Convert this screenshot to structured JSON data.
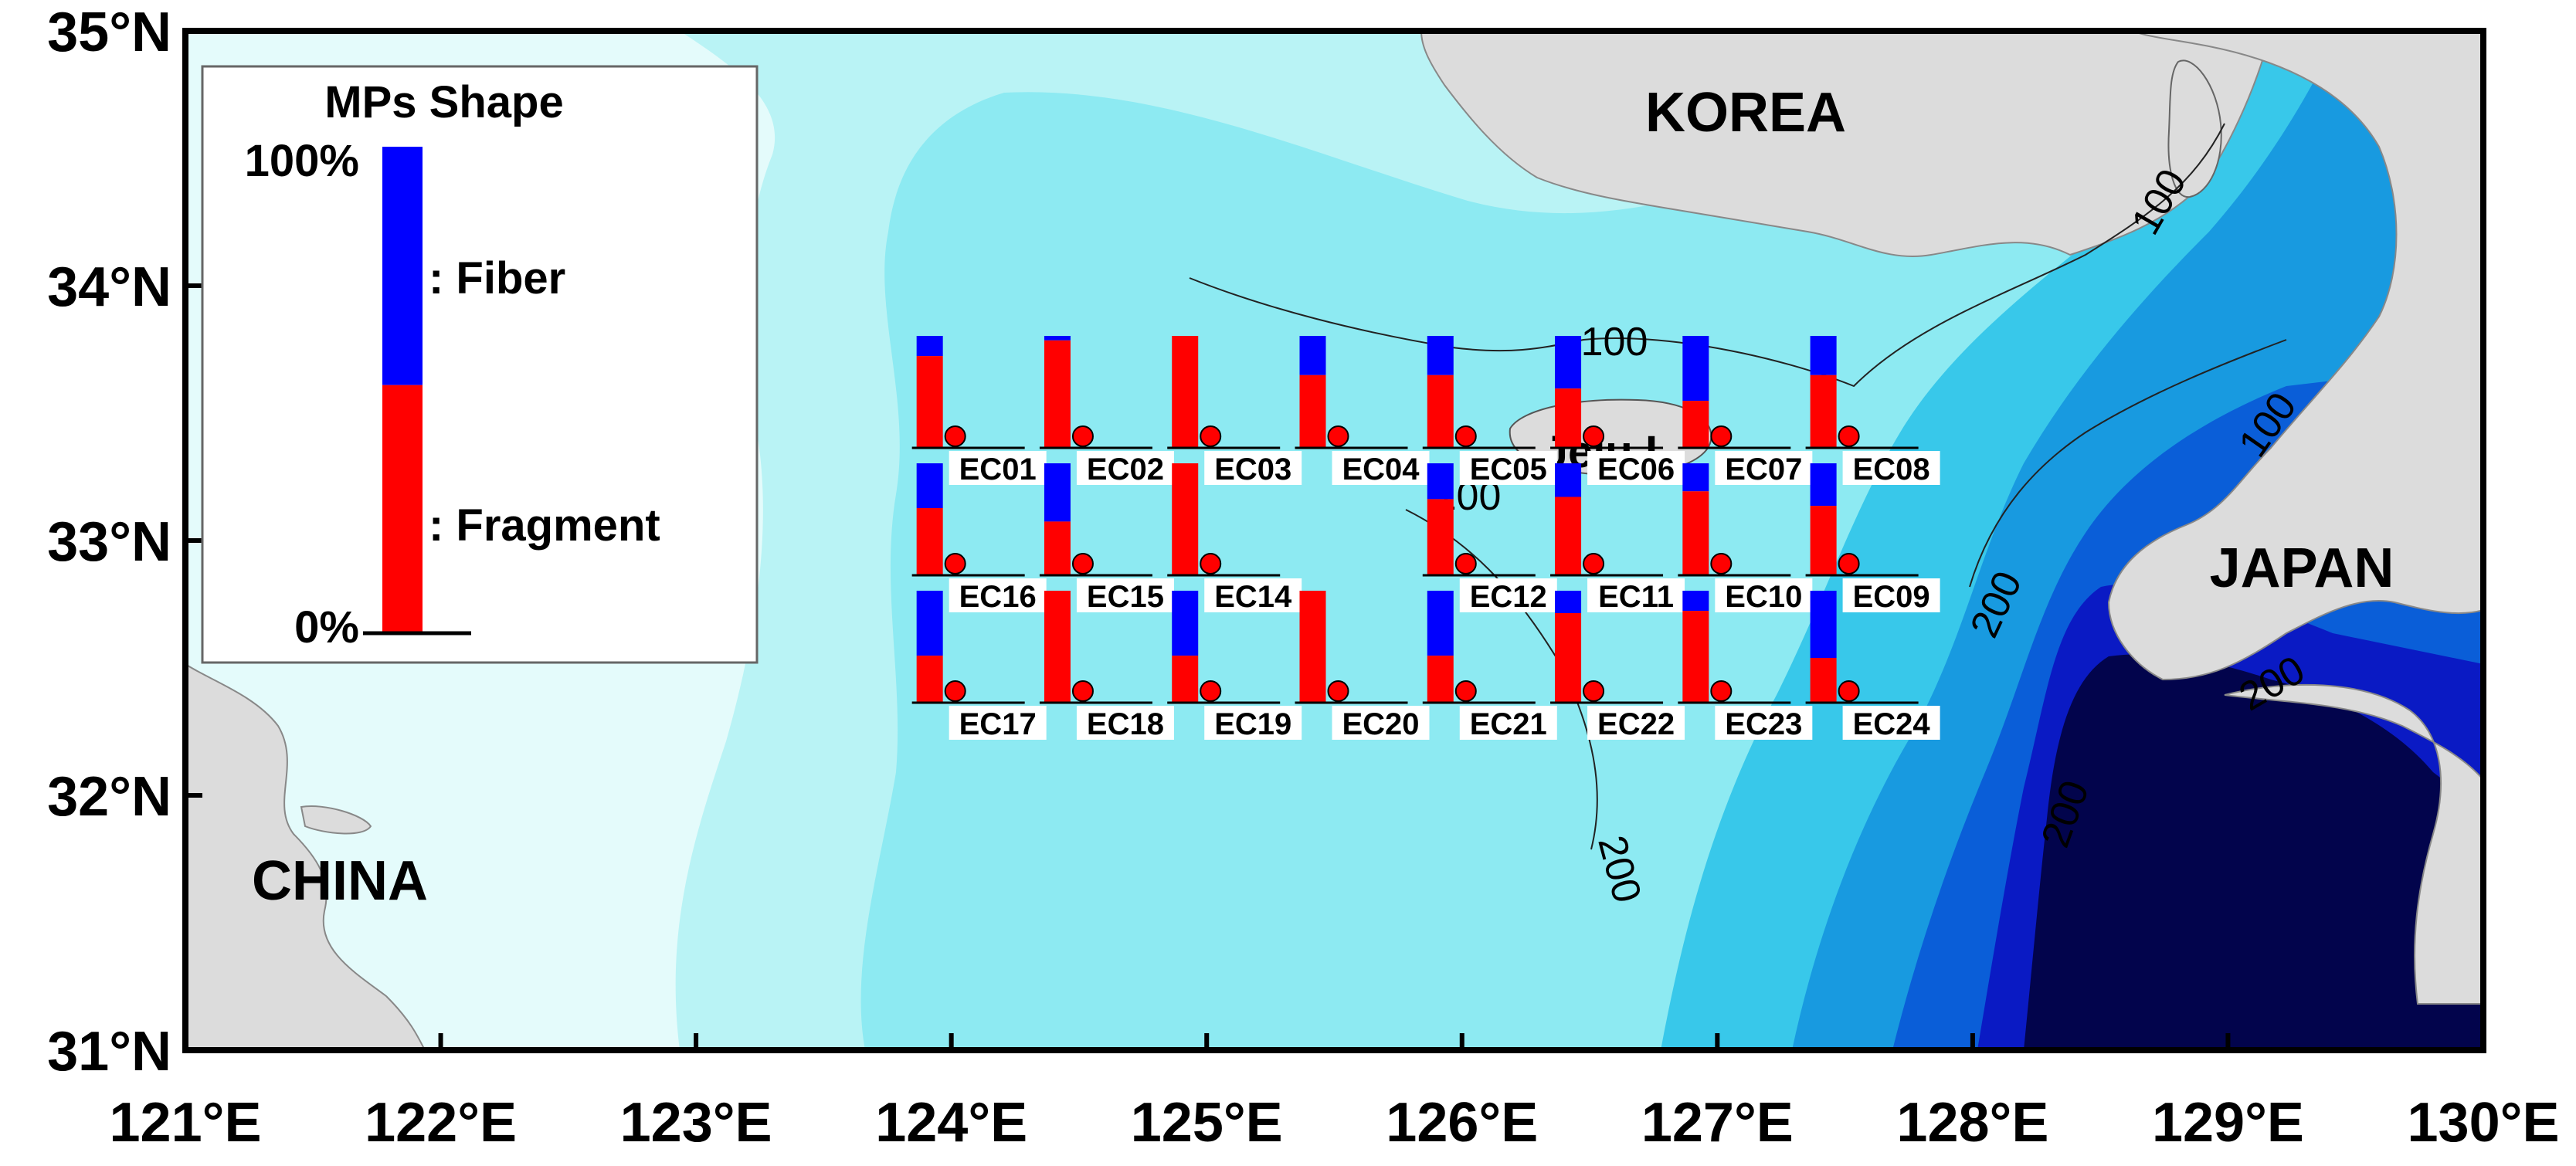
{
  "map": {
    "lon_min": 121,
    "lon_max": 130,
    "lat_min": 31,
    "lat_max": 35,
    "x_ticks": [
      "121°E",
      "122°E",
      "123°E",
      "124°E",
      "125°E",
      "126°E",
      "127°E",
      "128°E",
      "129°E",
      "130°E"
    ],
    "y_ticks": [
      "31°N",
      "32°N",
      "33°N",
      "34°N",
      "35°N"
    ],
    "land_labels": [
      "KOREA",
      "JAPAN",
      "CHINA",
      "Jeju I."
    ],
    "contour_labels": [
      "100",
      "100",
      "100",
      "100",
      "200",
      "200",
      "200",
      "200"
    ],
    "colors": {
      "land": "#dcdcdc",
      "coast_shallow": "#e4fbfb",
      "shelf_light": "#b9f3f5",
      "shelf": "#8deaf2",
      "mid": "#38c8ea",
      "deep_1": "#189ae0",
      "deep_2": "#0a5ed8",
      "deep_3": "#0a1ac4",
      "abyss": "#02044c",
      "fiber": "#0000ff",
      "fragment": "#ff0000"
    }
  },
  "legend": {
    "title": "MPs Shape",
    "top_label": "100%",
    "bottom_label": "0%",
    "fiber_label": ": Fiber",
    "fragment_label": ": Fragment",
    "fragment_fraction": 0.51
  },
  "stations": [
    {
      "id": "EC01",
      "lon": 124.0,
      "lat": 33.5,
      "fragment": 0.82
    },
    {
      "id": "EC02",
      "lon": 124.5,
      "lat": 33.5,
      "fragment": 0.96
    },
    {
      "id": "EC03",
      "lon": 125.0,
      "lat": 33.5,
      "fragment": 1.0
    },
    {
      "id": "EC04",
      "lon": 125.5,
      "lat": 33.5,
      "fragment": 0.65
    },
    {
      "id": "EC05",
      "lon": 126.0,
      "lat": 33.5,
      "fragment": 0.65
    },
    {
      "id": "EC06",
      "lon": 126.5,
      "lat": 33.5,
      "fragment": 0.53
    },
    {
      "id": "EC07",
      "lon": 127.0,
      "lat": 33.5,
      "fragment": 0.42
    },
    {
      "id": "EC08",
      "lon": 127.5,
      "lat": 33.5,
      "fragment": 0.65
    },
    {
      "id": "EC16",
      "lon": 124.0,
      "lat": 33.0,
      "fragment": 0.6
    },
    {
      "id": "EC15",
      "lon": 124.5,
      "lat": 33.0,
      "fragment": 0.48
    },
    {
      "id": "EC14",
      "lon": 125.0,
      "lat": 33.0,
      "fragment": 1.0
    },
    {
      "id": "EC12",
      "lon": 126.0,
      "lat": 33.0,
      "fragment": 0.68
    },
    {
      "id": "EC11",
      "lon": 126.5,
      "lat": 33.0,
      "fragment": 0.7
    },
    {
      "id": "EC10",
      "lon": 127.0,
      "lat": 33.0,
      "fragment": 0.75
    },
    {
      "id": "EC09",
      "lon": 127.5,
      "lat": 33.0,
      "fragment": 0.62
    },
    {
      "id": "EC17",
      "lon": 124.0,
      "lat": 32.5,
      "fragment": 0.42
    },
    {
      "id": "EC18",
      "lon": 124.5,
      "lat": 32.5,
      "fragment": 1.0
    },
    {
      "id": "EC19",
      "lon": 125.0,
      "lat": 32.5,
      "fragment": 0.42
    },
    {
      "id": "EC20",
      "lon": 125.5,
      "lat": 32.5,
      "fragment": 1.0
    },
    {
      "id": "EC21",
      "lon": 126.0,
      "lat": 32.5,
      "fragment": 0.42
    },
    {
      "id": "EC22",
      "lon": 126.5,
      "lat": 32.5,
      "fragment": 0.8
    },
    {
      "id": "EC23",
      "lon": 127.0,
      "lat": 32.5,
      "fragment": 0.82
    },
    {
      "id": "EC24",
      "lon": 127.5,
      "lat": 32.5,
      "fragment": 0.4
    }
  ]
}
